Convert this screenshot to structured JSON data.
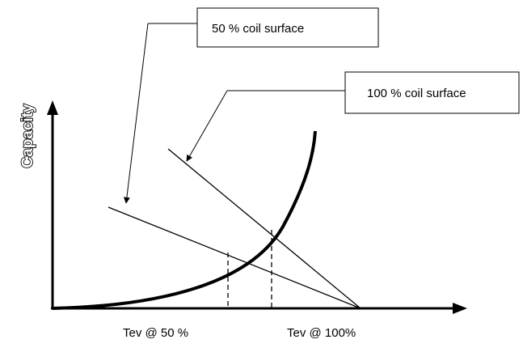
{
  "diagram": {
    "y_axis_label": "Capacity",
    "callouts": {
      "coil_50": "50 % coil surface",
      "coil_100": "100 % coil surface"
    },
    "x_labels": {
      "tev_50": "Tev @ 50 %",
      "tev_100": "Tev @ 100%"
    }
  }
}
